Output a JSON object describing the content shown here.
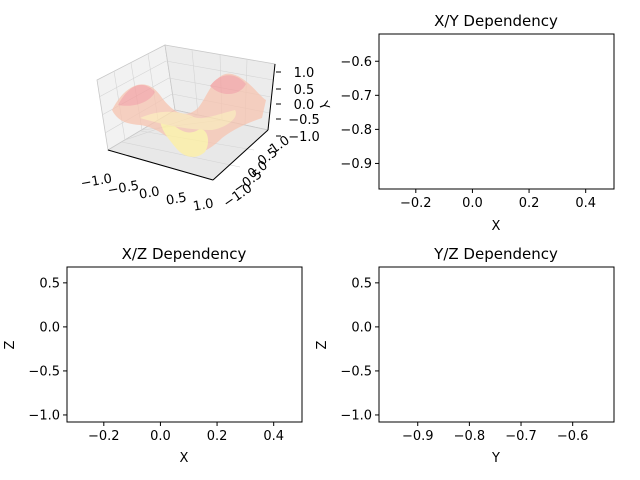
{
  "chart_data": [
    {
      "type": "surface3d",
      "title": "",
      "xlabel": "",
      "ylabel": "Y",
      "zlabel": "",
      "x_ticks": [
        "−1.0",
        "−0.5",
        "0.0",
        "0.5",
        "1.0"
      ],
      "y_ticks": [
        "−1.0",
        "−0.5",
        "0.0",
        "0.5",
        "1.0"
      ],
      "z_ticks": [
        "1.0",
        "0.5",
        "0.0",
        "−0.5",
        "−1.0"
      ],
      "xlim": [
        -1,
        1
      ],
      "ylim": [
        -1,
        1
      ],
      "zlim": [
        -1,
        1
      ],
      "grid": true,
      "surface_colors": [
        "#f4a6a6",
        "#fde8a6",
        "#fff29a"
      ],
      "surface": "sinusoidal surface, z = sin(πx)·cos(πy/2)"
    },
    {
      "type": "line",
      "title": "X/Y Dependency",
      "xlabel": "X",
      "ylabel": "",
      "xlim": [
        -0.33,
        0.5
      ],
      "ylim": [
        -0.975,
        -0.52
      ],
      "x_ticks": [
        -0.2,
        0.0,
        0.2,
        0.4
      ],
      "x_tick_labels": [
        "−0.2",
        "0.0",
        "0.2",
        "0.4"
      ],
      "y_ticks": [
        -0.6,
        -0.7,
        -0.8,
        -0.9
      ],
      "y_tick_labels": [
        "−0.6",
        "−0.7",
        "−0.8",
        "−0.9"
      ],
      "series": [],
      "grid": false
    },
    {
      "type": "line",
      "title": "X/Z Dependency",
      "xlabel": "X",
      "ylabel": "Z",
      "xlim": [
        -0.33,
        0.5
      ],
      "ylim": [
        -1.08,
        0.68
      ],
      "x_ticks": [
        -0.2,
        0.0,
        0.2,
        0.4
      ],
      "x_tick_labels": [
        "−0.2",
        "0.0",
        "0.2",
        "0.4"
      ],
      "y_ticks": [
        0.5,
        0.0,
        -0.5,
        -1.0
      ],
      "y_tick_labels": [
        "0.5",
        "0.0",
        "−0.5",
        "−1.0"
      ],
      "series": [],
      "grid": false
    },
    {
      "type": "line",
      "title": "Y/Z Dependency",
      "xlabel": "Y",
      "ylabel": "Z",
      "xlim": [
        -0.975,
        -0.52
      ],
      "ylim": [
        -1.08,
        0.68
      ],
      "x_ticks": [
        -0.9,
        -0.8,
        -0.7,
        -0.6
      ],
      "x_tick_labels": [
        "−0.9",
        "−0.8",
        "−0.7",
        "−0.6"
      ],
      "y_ticks": [
        0.5,
        0.0,
        -0.5,
        -1.0
      ],
      "y_tick_labels": [
        "0.5",
        "0.0",
        "−0.5",
        "−1.0"
      ],
      "series": [],
      "grid": false
    }
  ]
}
